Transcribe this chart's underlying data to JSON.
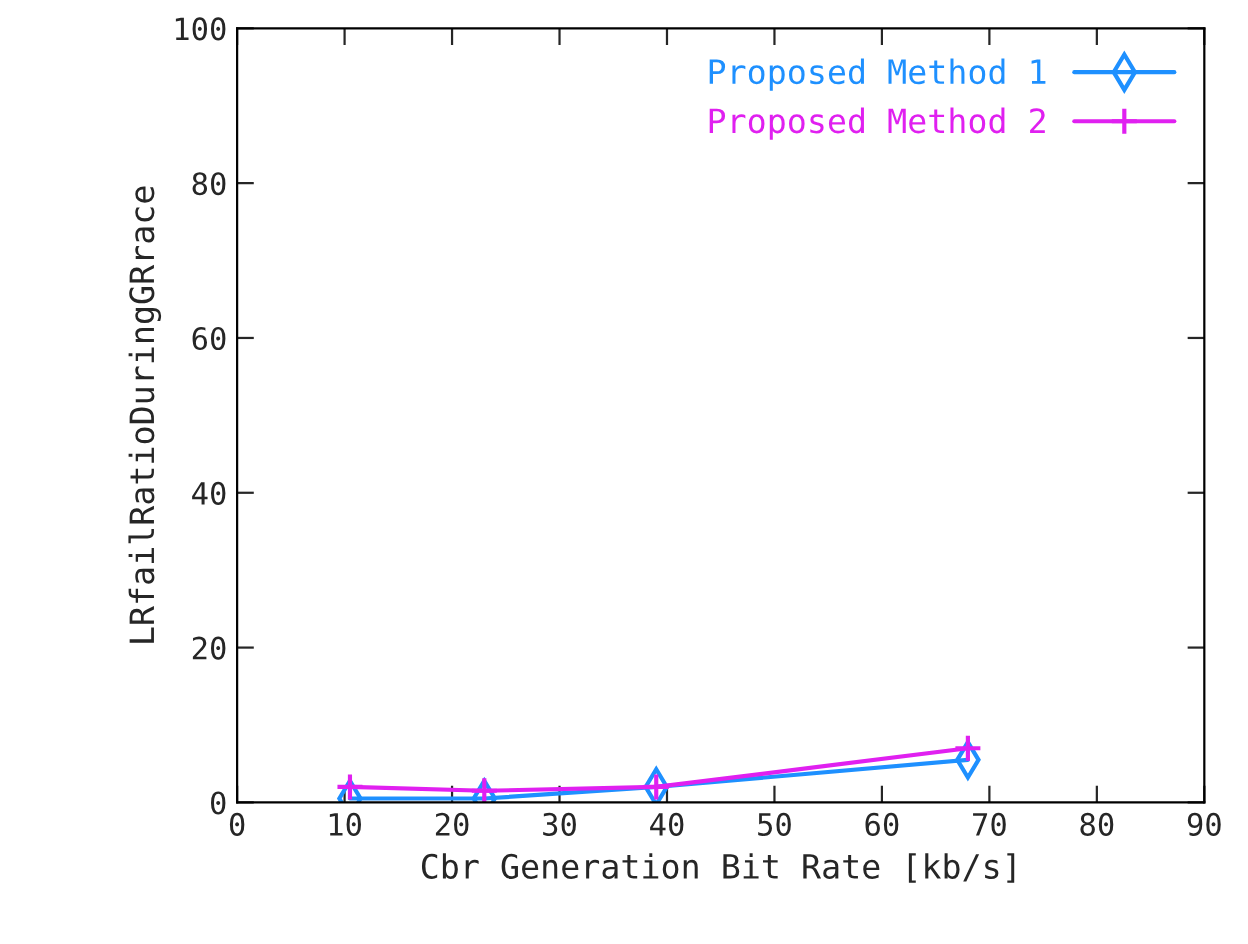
{
  "chart_data": {
    "type": "line",
    "xlabel": "Cbr Generation Bit Rate [kb/s]",
    "ylabel": "LRfailRatioDuringGRrace",
    "xlim": [
      0,
      90
    ],
    "xticks": [
      0,
      10,
      20,
      30,
      40,
      50,
      60,
      70,
      80,
      90
    ],
    "ylim": [
      0,
      100
    ],
    "yticks": [
      0,
      20,
      40,
      60,
      80,
      100
    ],
    "legend": "top right",
    "grid": false,
    "series": [
      {
        "name": "Proposed Method 1",
        "color": "#1e90ff",
        "marker": "diamond",
        "x": [
          10.5,
          23,
          39,
          68
        ],
        "values": [
          0.5,
          0.5,
          2,
          5.5
        ]
      },
      {
        "name": "Proposed Method 2",
        "color": "#e020f0",
        "marker": "cross",
        "x": [
          10.5,
          23,
          39,
          68
        ],
        "values": [
          2,
          1.5,
          2,
          7
        ]
      }
    ]
  }
}
